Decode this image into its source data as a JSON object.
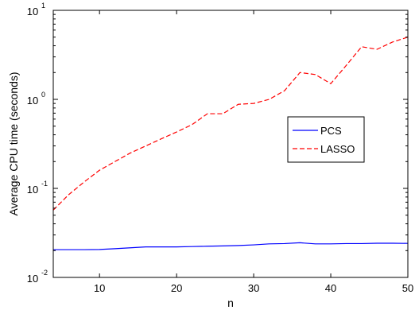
{
  "chart_data": {
    "type": "line",
    "title": "",
    "xlabel": "n",
    "ylabel": "Average CPU time (seconds)",
    "xlim": [
      4,
      50
    ],
    "ylim": [
      0.01,
      10
    ],
    "yscale": "log",
    "grid": false,
    "legend_position": "center-right",
    "x_ticks": [
      {
        "value": 10,
        "label": "10"
      },
      {
        "value": 20,
        "label": "20"
      },
      {
        "value": 30,
        "label": "30"
      },
      {
        "value": 40,
        "label": "40"
      },
      {
        "value": 50,
        "label": "50"
      }
    ],
    "y_ticks": [
      {
        "value": 0.01,
        "base": "10",
        "exp": "-2"
      },
      {
        "value": 0.1,
        "base": "10",
        "exp": "-1"
      },
      {
        "value": 1,
        "base": "10",
        "exp": "0"
      },
      {
        "value": 10,
        "base": "10",
        "exp": "1"
      }
    ],
    "series": [
      {
        "name": "PCS",
        "color": "#0000ff",
        "dash": "solid",
        "x": [
          4,
          6,
          8,
          10,
          12,
          14,
          16,
          18,
          20,
          22,
          24,
          26,
          28,
          30,
          32,
          34,
          36,
          38,
          40,
          42,
          44,
          46,
          48,
          50
        ],
        "y": [
          0.0205,
          0.0205,
          0.0205,
          0.0206,
          0.021,
          0.0215,
          0.022,
          0.022,
          0.022,
          0.0222,
          0.0224,
          0.0226,
          0.0228,
          0.0232,
          0.0238,
          0.024,
          0.0245,
          0.0238,
          0.0238,
          0.024,
          0.024,
          0.0242,
          0.0242,
          0.0241
        ]
      },
      {
        "name": "LASSO",
        "color": "#ff0000",
        "dash": "dashed",
        "x": [
          4,
          6,
          8,
          10,
          12,
          14,
          16,
          18,
          20,
          22,
          24,
          26,
          28,
          30,
          32,
          34,
          36,
          38,
          40,
          42,
          44,
          46,
          48,
          50
        ],
        "y": [
          0.057,
          0.085,
          0.118,
          0.16,
          0.2,
          0.25,
          0.3,
          0.36,
          0.43,
          0.52,
          0.69,
          0.69,
          0.88,
          0.9,
          1.0,
          1.25,
          2.0,
          1.9,
          1.5,
          2.4,
          3.9,
          3.65,
          4.4,
          5.0
        ]
      }
    ]
  }
}
